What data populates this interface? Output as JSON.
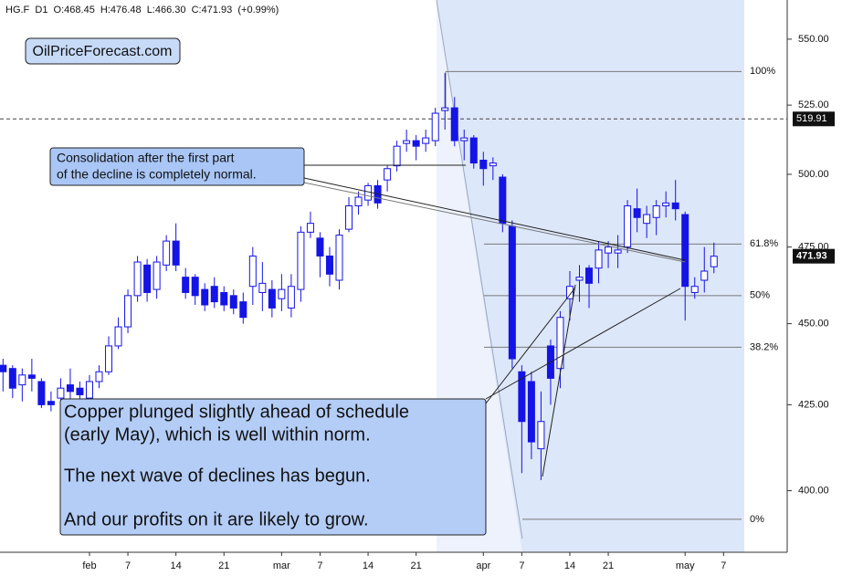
{
  "chart_data": {
    "type": "candlestick",
    "header": "HG.F  D1  O:468.45  H:476.48  L:466.30  C:471.93  (+0.99%)",
    "categories": [
      null,
      null,
      null,
      null,
      null,
      null,
      null,
      null,
      null,
      "feb",
      null,
      null,
      null,
      "7",
      null,
      null,
      null,
      null,
      "14",
      null,
      null,
      null,
      null,
      "21",
      null,
      null,
      null,
      null,
      null,
      "mar",
      null,
      null,
      null,
      "7",
      null,
      null,
      null,
      null,
      "14",
      null,
      null,
      null,
      null,
      "21",
      null,
      null,
      null,
      null,
      null,
      null,
      "apr",
      null,
      null,
      null,
      "7",
      null,
      null,
      null,
      null,
      "14",
      null,
      null,
      null,
      "21",
      null,
      null,
      null,
      null,
      null,
      null,
      null,
      "may",
      null,
      null,
      null,
      "7",
      null,
      null
    ],
    "series": [
      {
        "up_color": "#ffffff",
        "down_color": "#1414e6",
        "edge_color": "#1414e6",
        "open": [
          437,
          436,
          431,
          434,
          432,
          426,
          427,
          431,
          430,
          427,
          432,
          435,
          443,
          449,
          459,
          469,
          461,
          469,
          477,
          465,
          465,
          461,
          462,
          460,
          459,
          457,
          462,
          460,
          461,
          458,
          455,
          461,
          480,
          478,
          472,
          464,
          481,
          489,
          491,
          496,
          498,
          503,
          511,
          512,
          511,
          512,
          523,
          524,
          512,
          513,
          505,
          503,
          499,
          482,
          435,
          432,
          412,
          443,
          436,
          458,
          464,
          468,
          468,
          473,
          473,
          475,
          488,
          483,
          485,
          489,
          490,
          486,
          460,
          464,
          468.45,
          null,
          null,
          null
        ],
        "high": [
          439,
          437,
          436,
          439,
          433,
          429,
          433,
          436,
          432,
          434,
          437,
          446,
          452,
          461,
          472,
          471,
          472,
          479,
          483,
          468,
          466,
          463,
          465,
          462,
          461,
          460,
          475,
          470,
          464,
          466,
          466,
          482,
          487,
          480,
          475,
          481,
          492,
          494,
          497,
          498,
          503,
          512,
          516,
          514,
          516,
          524,
          537,
          528,
          516,
          514,
          508,
          506,
          500,
          484,
          437,
          435,
          429,
          445,
          454,
          467,
          469,
          469,
          477,
          477,
          479,
          491,
          495,
          489,
          491,
          494,
          498,
          487,
          465,
          475,
          476.48,
          null,
          null,
          null
        ],
        "low": [
          429,
          427,
          426,
          429,
          424,
          423,
          424,
          426,
          425,
          424,
          430,
          434,
          442,
          447,
          457,
          457,
          458,
          467,
          467,
          458,
          456,
          454,
          455,
          454,
          453,
          450,
          456,
          454,
          452,
          454,
          452,
          457,
          478,
          465,
          462,
          461,
          480,
          486,
          489,
          488,
          494,
          501,
          508,
          505,
          508,
          510,
          516,
          510,
          505,
          502,
          496,
          498,
          480,
          436,
          405,
          409,
          403,
          425,
          430,
          451,
          457,
          455,
          463,
          468,
          468,
          473,
          480,
          478,
          479,
          485,
          484,
          451,
          458,
          460,
          466.3,
          null,
          null,
          null
        ],
        "close": [
          435,
          430,
          434,
          433,
          425,
          425,
          430,
          429,
          428,
          432,
          435,
          443,
          449,
          459,
          470,
          460,
          470,
          477,
          469,
          460,
          459,
          456,
          457,
          456,
          455,
          452,
          472,
          463,
          455,
          461,
          462,
          480,
          483,
          472,
          466,
          479,
          489,
          492,
          496,
          490,
          502,
          510,
          512,
          510,
          513,
          522,
          524,
          512,
          513,
          504,
          502,
          504,
          483,
          439,
          420,
          414,
          420,
          433,
          452,
          462,
          465,
          463,
          474,
          475,
          474,
          489,
          485,
          486,
          489,
          490,
          488,
          462,
          462,
          467,
          471.93,
          null,
          null,
          null
        ]
      }
    ],
    "ylim": [
      383,
      565.4
    ],
    "log_scale": true,
    "grid": false,
    "yticks": [
      {
        "value": 550,
        "label": "550.00"
      },
      {
        "value": 525,
        "label": "525.00"
      },
      {
        "value": 500,
        "label": "500.00"
      },
      {
        "value": 475,
        "label": "475.00"
      },
      {
        "value": 450,
        "label": "450.00"
      },
      {
        "value": 425,
        "label": "425.00"
      },
      {
        "value": 400,
        "label": "400.00"
      }
    ],
    "hline": 519.91,
    "fib_levels": [
      {
        "value": 537.6,
        "label": "100%"
      },
      {
        "value": 476,
        "label": "61.8%"
      },
      {
        "value": 459,
        "label": "50%"
      },
      {
        "value": 442.6,
        "label": "38.2%"
      },
      {
        "value": 392,
        "label": "0%"
      }
    ],
    "watermark": "OilPriceForecast.com",
    "callout_1": [
      "Consolidation after the first part",
      "of the decline is completely normal."
    ],
    "callout_2": [
      "Copper plunged slightly ahead of schedule",
      "(early May), which is well within norm.",
      "The next wave of declines has begun.",
      "And our profits on it are likely to grow."
    ]
  }
}
